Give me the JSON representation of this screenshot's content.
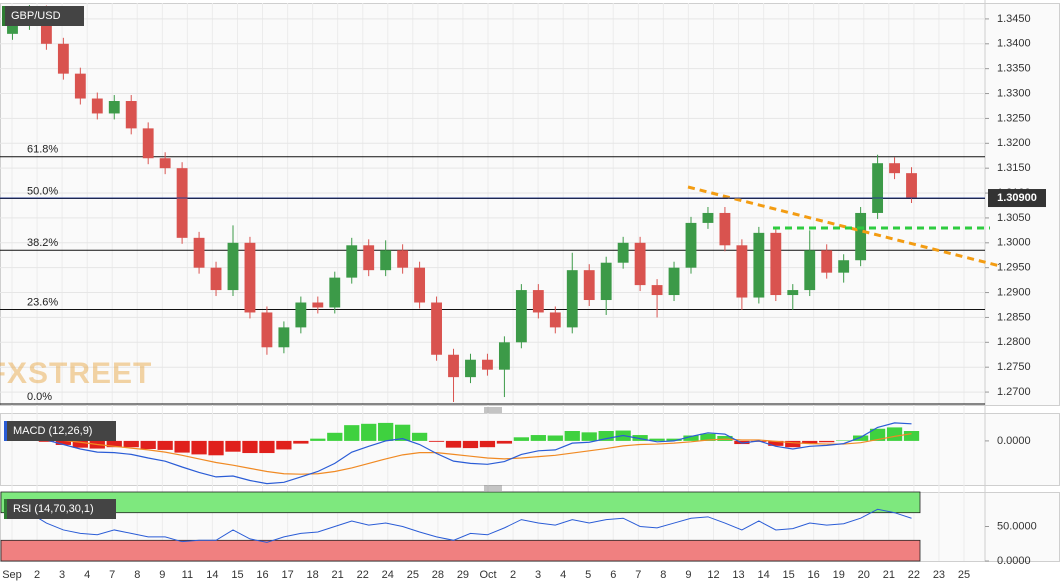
{
  "chart_data": [
    {
      "type": "candlestick",
      "title": "GBP/USD",
      "watermark": "FXSTREET",
      "up_color": "#3c9a48",
      "down_color": "#d9534f",
      "open": [
        1.342,
        1.344,
        1.3465,
        1.34,
        1.334,
        1.329,
        1.326,
        1.3285,
        1.323,
        1.317,
        1.315,
        1.301,
        1.295,
        1.2905,
        1.3,
        1.286,
        1.279,
        1.283,
        1.288,
        1.287,
        1.293,
        1.2995,
        1.2945,
        1.2985,
        1.295,
        1.288,
        1.2775,
        1.273,
        1.2765,
        1.2745,
        1.28,
        1.2905,
        1.286,
        1.283,
        1.2945,
        1.2885,
        1.296,
        1.3,
        1.2915,
        1.2895,
        1.295,
        1.304,
        1.306,
        1.2995,
        1.289,
        1.302,
        1.2895,
        1.2905,
        1.2985,
        1.294,
        1.2965,
        1.306,
        1.316,
        1.314
      ],
      "high": [
        1.3452,
        1.3478,
        1.3477,
        1.3412,
        1.3352,
        1.3302,
        1.3297,
        1.3297,
        1.3242,
        1.3182,
        1.3162,
        1.3022,
        1.2962,
        1.3035,
        1.3012,
        1.2872,
        1.2842,
        1.2892,
        1.2892,
        1.2942,
        1.301,
        1.3007,
        1.3005,
        1.2997,
        1.2962,
        1.2892,
        1.2787,
        1.2777,
        1.2777,
        1.2812,
        1.2917,
        1.2917,
        1.2872,
        1.298,
        1.2957,
        1.2972,
        1.3012,
        1.3012,
        1.2927,
        1.2962,
        1.3052,
        1.3072,
        1.3072,
        1.3007,
        1.3032,
        1.3032,
        1.2917,
        1.3025,
        1.2997,
        1.2977,
        1.3072,
        1.3177,
        1.3172,
        1.3152
      ],
      "low": [
        1.3408,
        1.3428,
        1.3388,
        1.3328,
        1.3278,
        1.3248,
        1.3248,
        1.3218,
        1.3158,
        1.3138,
        1.2998,
        1.2938,
        1.2893,
        1.2893,
        1.2848,
        1.2775,
        1.2778,
        1.2818,
        1.2858,
        1.2858,
        1.2918,
        1.2933,
        1.2933,
        1.2938,
        1.2868,
        1.2763,
        1.268,
        1.2718,
        1.2733,
        1.269,
        1.2788,
        1.2848,
        1.2818,
        1.2818,
        1.2873,
        1.2855,
        1.2948,
        1.2903,
        1.285,
        1.2883,
        1.2938,
        1.3028,
        1.2983,
        1.2865,
        1.2878,
        1.2883,
        1.2865,
        1.2893,
        1.2928,
        1.292,
        1.2953,
        1.3048,
        1.3128,
        1.308
      ],
      "close": [
        1.344,
        1.3465,
        1.34,
        1.334,
        1.329,
        1.326,
        1.3285,
        1.323,
        1.317,
        1.315,
        1.301,
        1.295,
        1.2905,
        1.3,
        1.286,
        1.279,
        1.283,
        1.288,
        1.287,
        1.293,
        1.2995,
        1.2945,
        1.2985,
        1.295,
        1.288,
        1.2775,
        1.273,
        1.2765,
        1.2745,
        1.28,
        1.2905,
        1.286,
        1.283,
        1.2945,
        1.2885,
        1.296,
        1.3,
        1.2915,
        1.2895,
        1.295,
        1.304,
        1.306,
        1.2995,
        1.289,
        1.302,
        1.2895,
        1.2905,
        1.2985,
        1.294,
        1.2965,
        1.306,
        1.316,
        1.314,
        1.309
      ],
      "last_price": {
        "value": 1.309,
        "label": "1.30900"
      },
      "fib_levels": [
        {
          "label": "61.8%",
          "value": 1.3173
        },
        {
          "label": "50.0%",
          "value": 1.3089
        },
        {
          "label": "38.2%",
          "value": 1.2985
        },
        {
          "label": "23.6%",
          "value": 1.2866
        },
        {
          "label": "0.0%",
          "value": 1.2676
        }
      ],
      "ylim": [
        1.2674,
        1.3482
      ],
      "yticks": [
        {
          "value": 1.27,
          "label": "1.2700"
        },
        {
          "value": 1.275,
          "label": "1.2750"
        },
        {
          "value": 1.28,
          "label": "1.2800"
        },
        {
          "value": 1.285,
          "label": "1.2850"
        },
        {
          "value": 1.29,
          "label": "1.2900"
        },
        {
          "value": 1.295,
          "label": "1.2950"
        },
        {
          "value": 1.3,
          "label": "1.3000"
        },
        {
          "value": 1.305,
          "label": "1.3050"
        },
        {
          "value": 1.31,
          "label": "1.3100"
        },
        {
          "value": 1.315,
          "label": "1.3150"
        },
        {
          "value": 1.32,
          "label": "1.3200"
        },
        {
          "value": 1.325,
          "label": "1.3250"
        },
        {
          "value": 1.33,
          "label": "1.3300"
        },
        {
          "value": 1.335,
          "label": "1.3350"
        },
        {
          "value": 1.34,
          "label": "1.3400"
        },
        {
          "value": 1.345,
          "label": "1.3450"
        }
      ],
      "grid": true,
      "x_labels": [
        "Sep",
        "2",
        "3",
        "4",
        "7",
        "8",
        "9",
        "11",
        "14",
        "15",
        "16",
        "17",
        "18",
        "21",
        "22",
        "24",
        "25",
        "28",
        "29",
        "Oct",
        "2",
        "3",
        "4",
        "5",
        "6",
        "7",
        "8",
        "9",
        "12",
        "13",
        "14",
        "15",
        "16",
        "19",
        "20",
        "21",
        "22",
        "23",
        "25"
      ]
    },
    {
      "type": "macd",
      "title": "MACD (12,26,9)",
      "macd": {
        "color": "#2a5cd6",
        "values": [
          0.0005,
          0.0008,
          0.0002,
          -0.0008,
          -0.0018,
          -0.0025,
          -0.0026,
          -0.003,
          -0.0038,
          -0.0045,
          -0.0058,
          -0.007,
          -0.008,
          -0.0078,
          -0.0088,
          -0.0095,
          -0.0092,
          -0.008,
          -0.0068,
          -0.005,
          -0.0025,
          -0.0012,
          0.0,
          0.0005,
          -0.0008,
          -0.0028,
          -0.0045,
          -0.005,
          -0.0052,
          -0.0046,
          -0.003,
          -0.0022,
          -0.002,
          -0.0005,
          -0.0003,
          0.0005,
          0.0012,
          0.0005,
          -0.0002,
          0.0,
          0.001,
          0.0018,
          0.0015,
          -0.0005,
          0.0,
          -0.0012,
          -0.0018,
          -0.0012,
          -0.001,
          -0.0006,
          0.0008,
          0.003,
          0.004,
          0.0038
        ]
      },
      "signal": {
        "color": "#f08a24",
        "values": [
          0.0002,
          0.0004,
          0.0004,
          0.0001,
          -0.0003,
          -0.0008,
          -0.0012,
          -0.0016,
          -0.002,
          -0.0025,
          -0.0032,
          -0.004,
          -0.0048,
          -0.0054,
          -0.0061,
          -0.0068,
          -0.0073,
          -0.0074,
          -0.0073,
          -0.0068,
          -0.006,
          -0.005,
          -0.004,
          -0.0031,
          -0.0026,
          -0.0026,
          -0.003,
          -0.0034,
          -0.0038,
          -0.004,
          -0.0038,
          -0.0035,
          -0.0032,
          -0.0027,
          -0.0022,
          -0.0017,
          -0.0011,
          -0.0008,
          -0.0007,
          -0.0005,
          -0.0002,
          0.0002,
          0.0004,
          0.0002,
          0.0002,
          -0.0001,
          -0.0004,
          -0.0006,
          -0.0007,
          -0.0007,
          -0.0004,
          0.0003,
          0.001,
          0.0016
        ]
      },
      "histogram": {
        "up_color": "#3fd13f",
        "down_color": "#e0201c",
        "values": [
          0.0003,
          0.0004,
          -0.0002,
          -0.0009,
          -0.0015,
          -0.0017,
          -0.0014,
          -0.0014,
          -0.0018,
          -0.002,
          -0.0026,
          -0.003,
          -0.0032,
          -0.0024,
          -0.0027,
          -0.0027,
          -0.0019,
          -0.0006,
          0.0005,
          0.0018,
          0.0035,
          0.0038,
          0.004,
          0.0036,
          0.0018,
          -0.0002,
          -0.0015,
          -0.0016,
          -0.0014,
          -0.0006,
          0.0008,
          0.0013,
          0.0012,
          0.0022,
          0.0019,
          0.0022,
          0.0023,
          0.0013,
          0.0005,
          0.0005,
          0.0012,
          0.0016,
          0.0011,
          -0.0007,
          -0.0002,
          -0.0011,
          -0.0014,
          -0.0006,
          -0.0003,
          0.0001,
          0.0012,
          0.0027,
          0.003,
          0.0022
        ]
      },
      "ylim": [
        -0.0098,
        0.0062
      ],
      "yticks": [
        {
          "value": 0,
          "label": "0.0000"
        }
      ]
    },
    {
      "type": "rsi",
      "title": "RSI (14,70,30,1)",
      "color": "#2a5cd6",
      "values": [
        65,
        70,
        55,
        45,
        40,
        38,
        45,
        40,
        35,
        35,
        28,
        30,
        30,
        45,
        32,
        27,
        35,
        40,
        42,
        50,
        58,
        52,
        55,
        50,
        42,
        35,
        30,
        40,
        38,
        48,
        60,
        55,
        52,
        60,
        55,
        60,
        62,
        50,
        48,
        55,
        62,
        64,
        55,
        45,
        58,
        45,
        47,
        55,
        52,
        54,
        62,
        75,
        70,
        62
      ],
      "overbought": 70,
      "oversold": 30,
      "overbought_color": "#7ee87e",
      "oversold_color": "#f08080",
      "ylim": [
        0,
        100
      ],
      "yticks": [
        {
          "value": 0,
          "label": "0.0000"
        },
        {
          "value": 50,
          "label": "50.0000"
        }
      ]
    }
  ]
}
